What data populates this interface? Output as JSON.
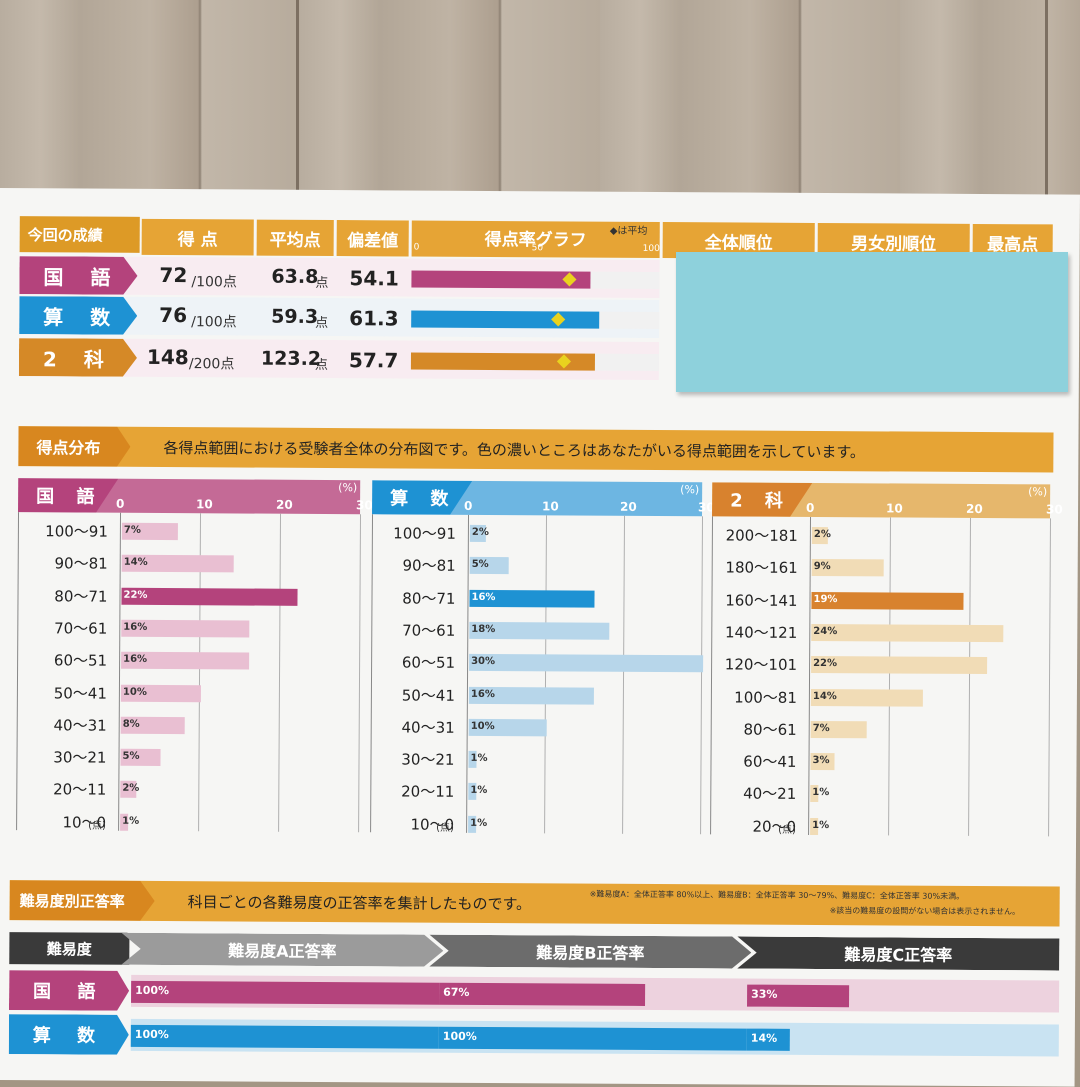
{
  "results": {
    "title": "今回の成績",
    "headers": [
      "得 点",
      "平均点",
      "偏差値",
      "得点率グラフ",
      "全体順位",
      "男女別順位",
      "最高点"
    ],
    "avg_legend": "◆は平均",
    "scale": [
      "0",
      "50",
      "100"
    ],
    "rows": [
      {
        "subject": "国 語",
        "score": "72",
        "max": "/100点",
        "avg": "63.8",
        "avg_unit": "点",
        "dev": "54.1",
        "rate": 72,
        "avg_rate": 63.8,
        "color": "#b4437c"
      },
      {
        "subject": "算 数",
        "score": "76",
        "max": "/100点",
        "avg": "59.3",
        "avg_unit": "点",
        "dev": "61.3",
        "rate": 76,
        "avg_rate": 59.3,
        "color": "#1e92d3"
      },
      {
        "subject": "2 科",
        "score": "148",
        "max": "/200点",
        "avg": "123.2",
        "avg_unit": "点",
        "dev": "57.7",
        "rate": 74,
        "avg_rate": 61.6,
        "color": "#d58927"
      }
    ]
  },
  "distribution": {
    "title": "得点分布",
    "desc": "各得点範囲における受験者全体の分布図です。色の濃いところはあなたがいる得点範囲を示しています。",
    "pct_unit": "(%)",
    "pt_unit": "(点)",
    "ticks": [
      "0",
      "10",
      "20",
      "30"
    ],
    "charts": [
      {
        "subject": "国 語",
        "dark": "#b4437c",
        "light": "#e9bfd2",
        "head": "#c46a96",
        "ranges": [
          "100〜91",
          "90〜81",
          "80〜71",
          "70〜61",
          "60〜51",
          "50〜41",
          "40〜31",
          "30〜21",
          "20〜11",
          "10〜0"
        ],
        "values": [
          7,
          14,
          22,
          16,
          16,
          10,
          8,
          5,
          2,
          1
        ],
        "current": 2
      },
      {
        "subject": "算 数",
        "dark": "#1e92d3",
        "light": "#b7d6ea",
        "head": "#6db6e2",
        "ranges": [
          "100〜91",
          "90〜81",
          "80〜71",
          "70〜61",
          "60〜51",
          "50〜41",
          "40〜31",
          "30〜21",
          "20〜11",
          "10〜0"
        ],
        "values": [
          2,
          5,
          16,
          18,
          30,
          16,
          10,
          1,
          1,
          1
        ],
        "current": 2
      },
      {
        "subject": "2 科",
        "dark": "#d8822e",
        "light": "#f1dcb6",
        "head": "#e6b76c",
        "ranges": [
          "200〜181",
          "180〜161",
          "160〜141",
          "140〜121",
          "120〜101",
          "100〜81",
          "80〜61",
          "60〜41",
          "40〜21",
          "20〜0"
        ],
        "values": [
          2,
          9,
          19,
          24,
          22,
          14,
          7,
          3,
          1,
          1
        ],
        "current": 2
      }
    ]
  },
  "difficulty": {
    "title": "難易度別正答率",
    "desc": "科目ごとの各難易度の正答率を集計したものです。",
    "note1": "※難易度A：全体正答率 80%以上、難易度B：全体正答率 30〜79%、難易度C：全体正答率 30%未満。",
    "note2": "※該当の難易度の設問がない場合は表示されません。",
    "header_label": "難易度",
    "cols": [
      "難易度A正答率",
      "難易度B正答率",
      "難易度C正答率"
    ],
    "rows": [
      {
        "subject": "国 語",
        "values": [
          100,
          67,
          33
        ],
        "labels": [
          "100%",
          "67%",
          "33%"
        ],
        "color": "#b4437c",
        "light": "#edd2de"
      },
      {
        "subject": "算 数",
        "values": [
          100,
          100,
          14
        ],
        "labels": [
          "100%",
          "100%",
          "14%"
        ],
        "color": "#1e92d3",
        "light": "#c9e3f2"
      }
    ]
  },
  "colors": {
    "orange": "#e6a435",
    "sticky": "#8ed1dc"
  }
}
